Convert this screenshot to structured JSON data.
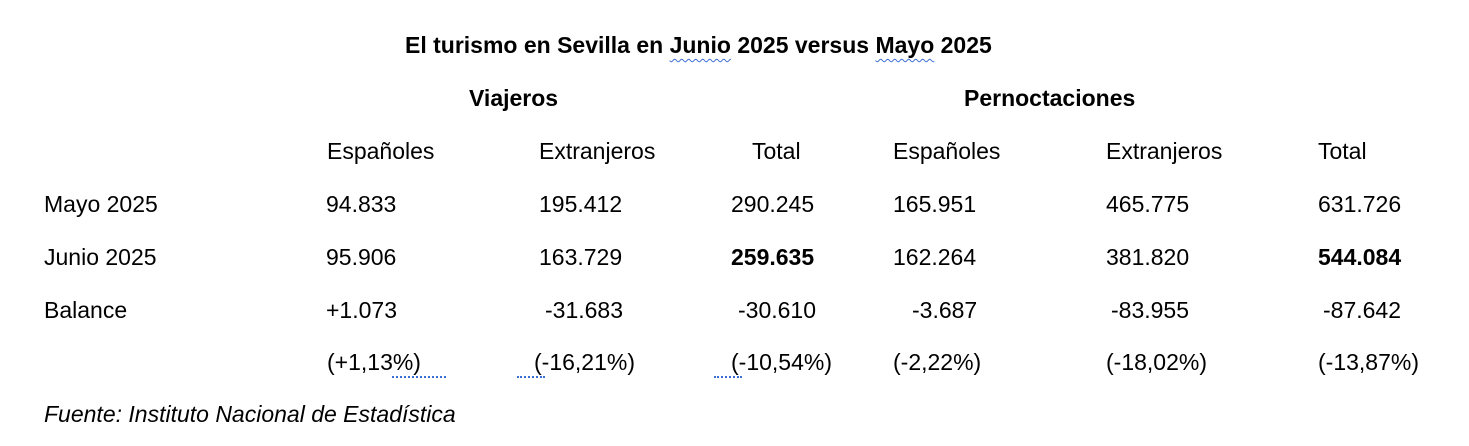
{
  "title": {
    "prefix": "El turismo en Sevilla en ",
    "word1": "Junio",
    "middle": " 2025 versus ",
    "word2": "Mayo",
    "suffix": " 2025"
  },
  "groups": {
    "viajeros": "Viajeros",
    "pernoctaciones": "Pernoctaciones"
  },
  "columns": {
    "v_esp": "Españoles",
    "v_ext": "Extranjeros",
    "v_tot": "Total",
    "p_esp": "Españoles",
    "p_ext": "Extranjeros",
    "p_tot": "Total"
  },
  "rows": {
    "mayo": {
      "label": "Mayo 2025",
      "v_esp": "94.833",
      "v_ext": "195.412",
      "v_tot": "290.245",
      "p_esp": "165.951",
      "p_ext": "465.775",
      "p_tot": "631.726"
    },
    "junio": {
      "label": "Junio 2025",
      "v_esp": "95.906",
      "v_ext": "163.729",
      "v_tot": "259.635",
      "p_esp": "162.264",
      "p_ext": "381.820",
      "p_tot": "544.084"
    },
    "balance": {
      "label": "Balance",
      "v_esp": "+1.073",
      "v_ext": "-31.683",
      "v_tot": "-30.610",
      "p_esp": "-3.687",
      "p_ext": "-83.955",
      "p_tot": "-87.642"
    },
    "percent": {
      "v_esp": "(+1,13%)",
      "v_ext": "(-16,21%)",
      "v_tot": "(-10,54%)",
      "p_esp": "(-2,22%)",
      "p_ext": "(-18,02%)",
      "p_tot": "(-13,87%)"
    }
  },
  "source": "Fuente: Instituto Nacional de Estadística"
}
